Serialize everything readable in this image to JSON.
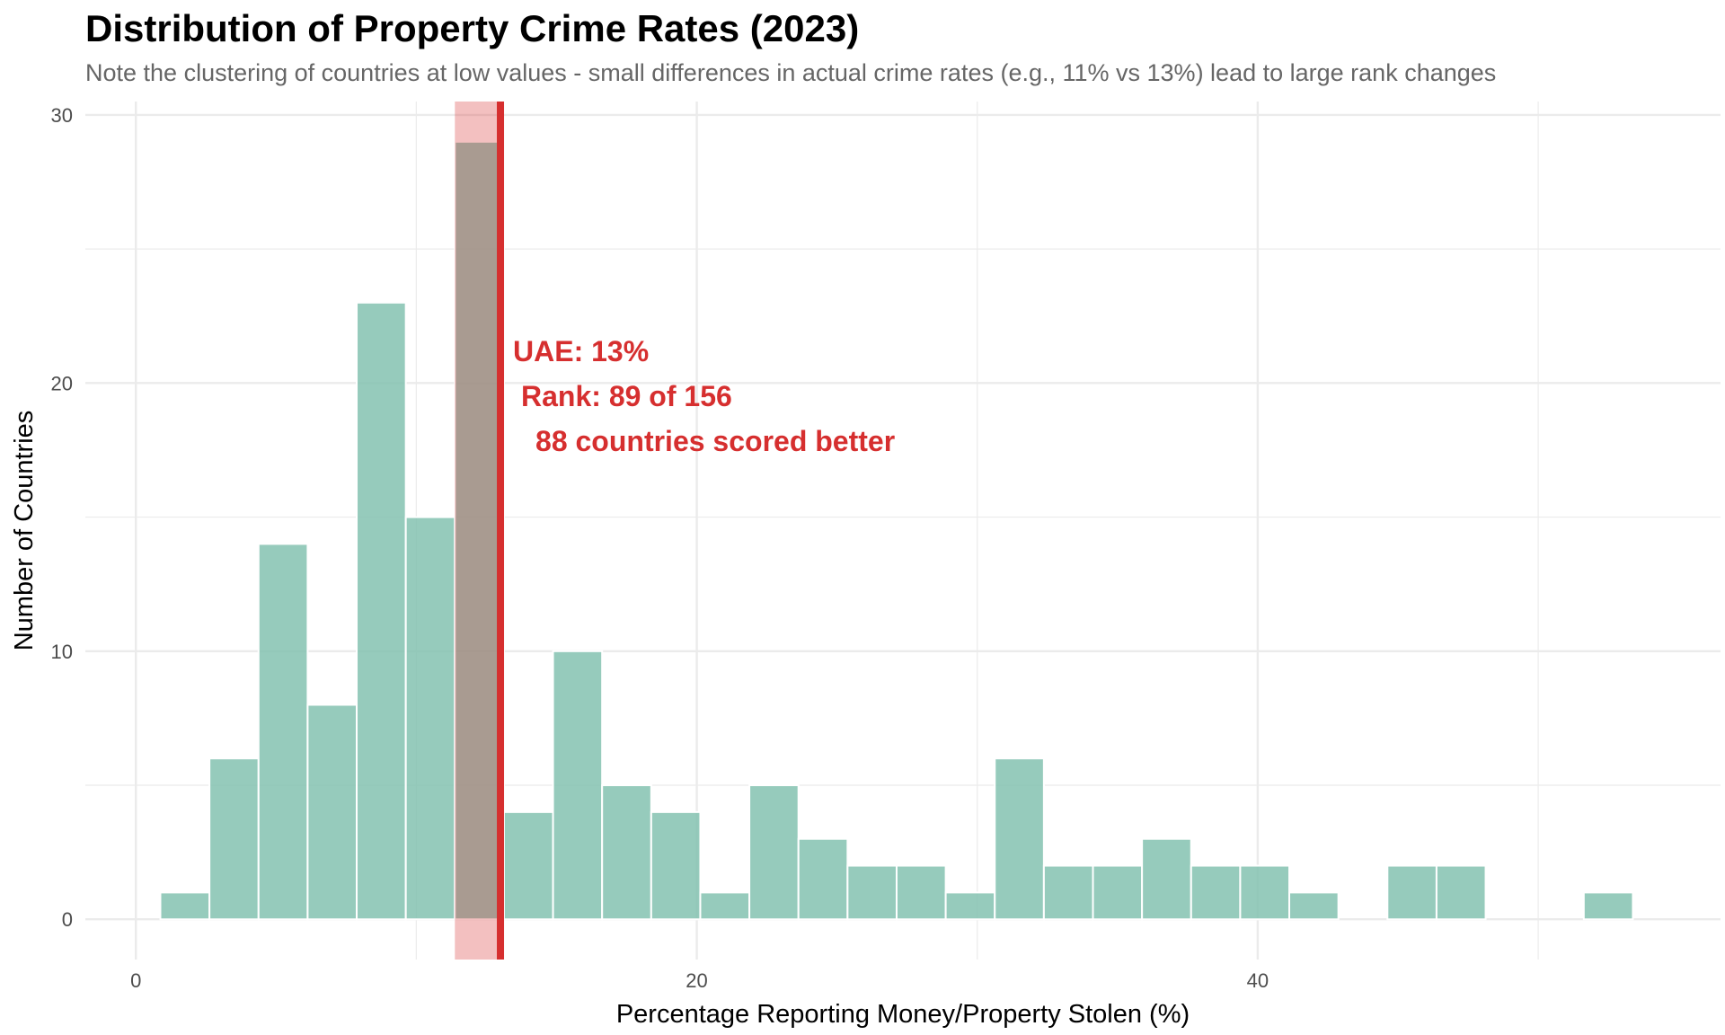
{
  "chart_data": {
    "type": "bar",
    "title": "Distribution of Property Crime Rates (2023)",
    "subtitle": "Note the clustering of countries at low values - small differences in actual crime rates (e.g., 11% vs 13%) lead to large rank changes",
    "xlabel": "Percentage Reporting Money/Property Stolen (%)",
    "ylabel": "Number of Countries",
    "xlim": [
      -1.8,
      56.5
    ],
    "ylim": [
      -1.5,
      30.5
    ],
    "x_ticks": [
      0,
      20,
      40
    ],
    "y_ticks": [
      0,
      10,
      20,
      30
    ],
    "bin_width": 1.75,
    "bins": [
      {
        "center": 1.75,
        "count": 1
      },
      {
        "center": 3.5,
        "count": 6
      },
      {
        "center": 5.25,
        "count": 14
      },
      {
        "center": 7.0,
        "count": 8
      },
      {
        "center": 8.75,
        "count": 23
      },
      {
        "center": 10.5,
        "count": 15
      },
      {
        "center": 12.25,
        "count": 29
      },
      {
        "center": 14.0,
        "count": 4
      },
      {
        "center": 15.75,
        "count": 10
      },
      {
        "center": 17.5,
        "count": 5
      },
      {
        "center": 19.25,
        "count": 4
      },
      {
        "center": 21.0,
        "count": 1
      },
      {
        "center": 22.75,
        "count": 5
      },
      {
        "center": 24.5,
        "count": 3
      },
      {
        "center": 26.25,
        "count": 2
      },
      {
        "center": 28.0,
        "count": 2
      },
      {
        "center": 29.75,
        "count": 1
      },
      {
        "center": 31.5,
        "count": 6
      },
      {
        "center": 33.25,
        "count": 2
      },
      {
        "center": 35.0,
        "count": 2
      },
      {
        "center": 36.75,
        "count": 3
      },
      {
        "center": 38.5,
        "count": 2
      },
      {
        "center": 40.25,
        "count": 2
      },
      {
        "center": 42.0,
        "count": 1
      },
      {
        "center": 43.75,
        "count": 0
      },
      {
        "center": 45.5,
        "count": 2
      },
      {
        "center": 47.25,
        "count": 2
      },
      {
        "center": 49.0,
        "count": 0
      },
      {
        "center": 50.75,
        "count": 0
      },
      {
        "center": 52.5,
        "count": 1
      }
    ],
    "highlight_bin_center": 12.25,
    "reference_line": {
      "x": 13.0,
      "label": "UAE: 13%"
    },
    "annotations": [
      "UAE: 13%",
      "Rank: 89 of 156",
      "88 countries scored better"
    ],
    "grid": true,
    "colors": {
      "bar": "#7fbfad",
      "highlight": "#d62f2f",
      "grid": "#ebebeb"
    }
  }
}
